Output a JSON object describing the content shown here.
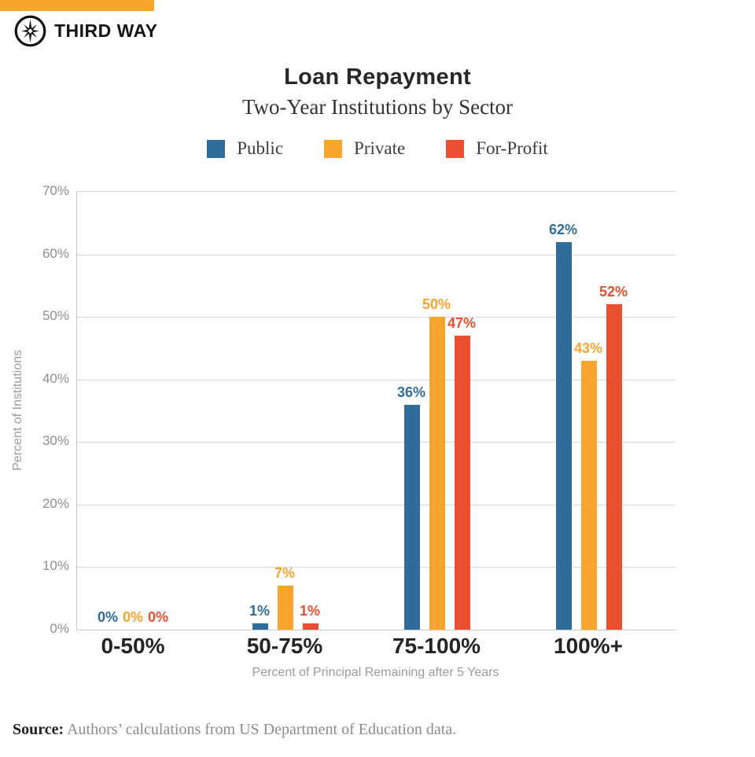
{
  "brand": {
    "top_bar_color": "#F9A42C",
    "logo_text": "THIRD WAY"
  },
  "header": {
    "title": "Loan Repayment",
    "subtitle": "Two-Year Institutions by Sector"
  },
  "chart_data": {
    "type": "bar",
    "title": "Loan Repayment",
    "subtitle": "Two-Year Institutions by Sector",
    "categories": [
      "0-50%",
      "50-75%",
      "75-100%",
      "100%+"
    ],
    "series": [
      {
        "name": "Public",
        "color": "#2F6C99",
        "values": [
          0,
          1,
          36,
          62
        ]
      },
      {
        "name": "Private",
        "color": "#F9A42C",
        "values": [
          0,
          7,
          50,
          43
        ]
      },
      {
        "name": "For-Profit",
        "color": "#E8502F",
        "values": [
          0,
          1,
          47,
          52
        ]
      }
    ],
    "xlabel": "Percent of Principal Remaining after 5 Years",
    "ylabel": "Percent of Institutions",
    "ylim": [
      0,
      70
    ],
    "ytick_labels": [
      "0%",
      "10%",
      "20%",
      "30%",
      "40%",
      "50%",
      "60%",
      "70%"
    ],
    "grid": true,
    "legend_position": "top",
    "value_label_suffix": "%"
  },
  "source": {
    "bold": "Source:",
    "text": " Authors’ calculations from US Department of Education data."
  }
}
